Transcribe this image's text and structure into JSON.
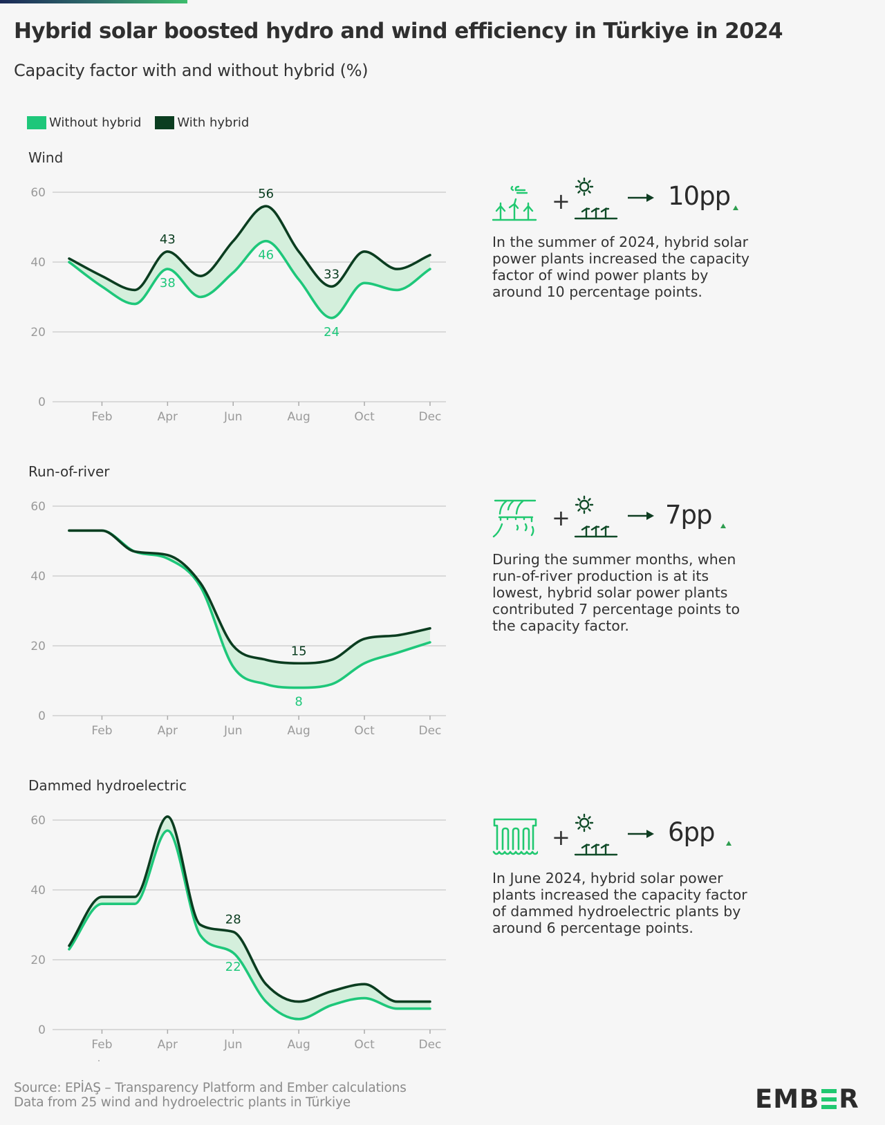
{
  "header": {
    "title": "Hybrid solar boosted hydro and wind efficiency in Türkiye in 2024",
    "subtitle": "Capacity factor with and without hybrid (%)"
  },
  "legend": [
    {
      "label": "Without hybrid",
      "color": "#1ec77a"
    },
    {
      "label": "With hybrid",
      "color": "#0b3d20"
    }
  ],
  "colors": {
    "without": "#1ec77a",
    "with": "#0b3d20",
    "band": "#d4efdc",
    "grid": "#cfcfcf",
    "axis_text": "#9a9a9a",
    "accent_triangle": "#2e9d4f"
  },
  "chart_data": [
    {
      "type": "line",
      "title": "Wind",
      "xlabel": "",
      "ylabel": "",
      "ylim": [
        0,
        60
      ],
      "yticks": [
        "0",
        "20",
        "40",
        "60"
      ],
      "grid": true,
      "x": [
        "Jan",
        "Feb",
        "Mar",
        "Apr",
        "May",
        "Jun",
        "Jul",
        "Aug",
        "Sep",
        "Oct",
        "Nov",
        "Dec"
      ],
      "xtick_labels": [
        "Feb",
        "Apr",
        "Jun",
        "Aug",
        "Oct",
        "Dec"
      ],
      "series": [
        {
          "name": "Without hybrid",
          "values": [
            40,
            33,
            28,
            38,
            30,
            37,
            46,
            35,
            24,
            34,
            32,
            38
          ]
        },
        {
          "name": "With hybrid",
          "values": [
            41,
            36,
            32,
            43,
            36,
            46,
            56,
            43,
            33,
            43,
            38,
            42
          ]
        }
      ],
      "annotations": [
        {
          "series": "With hybrid",
          "month": "Apr",
          "text": "43",
          "pos": "above"
        },
        {
          "series": "Without hybrid",
          "month": "Apr",
          "text": "38",
          "pos": "below"
        },
        {
          "series": "With hybrid",
          "month": "Jul",
          "text": "56",
          "pos": "above"
        },
        {
          "series": "Without hybrid",
          "month": "Jul",
          "text": "46",
          "pos": "below"
        },
        {
          "series": "With hybrid",
          "month": "Sep",
          "text": "33",
          "pos": "above"
        },
        {
          "series": "Without hybrid",
          "month": "Sep",
          "text": "24",
          "pos": "below"
        }
      ]
    },
    {
      "type": "line",
      "title": "Run-of-river",
      "xlabel": "",
      "ylabel": "",
      "ylim": [
        0,
        60
      ],
      "yticks": [
        "0",
        "20",
        "40",
        "60"
      ],
      "grid": true,
      "x": [
        "Jan",
        "Feb",
        "Mar",
        "Apr",
        "May",
        "Jun",
        "Jul",
        "Aug",
        "Sep",
        "Oct",
        "Nov",
        "Dec"
      ],
      "xtick_labels": [
        "Feb",
        "Apr",
        "Jun",
        "Aug",
        "Oct",
        "Dec"
      ],
      "series": [
        {
          "name": "Without hybrid",
          "values": [
            53,
            53,
            47,
            45,
            37,
            14,
            9,
            8,
            9,
            15,
            18,
            21
          ]
        },
        {
          "name": "With hybrid",
          "values": [
            53,
            53,
            47,
            46,
            38,
            20,
            16,
            15,
            16,
            22,
            23,
            25
          ]
        }
      ],
      "annotations": [
        {
          "series": "With hybrid",
          "month": "Aug",
          "text": "15",
          "pos": "above"
        },
        {
          "series": "Without hybrid",
          "month": "Aug",
          "text": "8",
          "pos": "below"
        }
      ]
    },
    {
      "type": "line",
      "title": "Dammed hydroelectric",
      "xlabel": "",
      "ylabel": "",
      "ylim": [
        0,
        60
      ],
      "yticks": [
        "0",
        "20",
        "40",
        "60"
      ],
      "grid": true,
      "x": [
        "Jan",
        "Feb",
        "Mar",
        "Apr",
        "May",
        "Jun",
        "Jul",
        "Aug",
        "Sep",
        "Oct",
        "Nov",
        "Dec"
      ],
      "xtick_labels": [
        "Feb",
        "Apr",
        "Jun",
        "Aug",
        "Oct",
        "Dec"
      ],
      "series": [
        {
          "name": "Without hybrid",
          "values": [
            23,
            36,
            36,
            57,
            27,
            22,
            8,
            3,
            7,
            9,
            6,
            6
          ]
        },
        {
          "name": "With hybrid",
          "values": [
            24,
            38,
            38,
            61,
            30,
            28,
            13,
            8,
            11,
            13,
            8,
            8
          ]
        }
      ],
      "annotations": [
        {
          "series": "With hybrid",
          "month": "Jun",
          "text": "28",
          "pos": "above"
        },
        {
          "series": "Without hybrid",
          "month": "Jun",
          "text": "22",
          "pos": "below"
        }
      ]
    }
  ],
  "annotations_panel": [
    {
      "source_icon": "wind-turbines-icon",
      "plus": "+",
      "solar_icon": "solar-panels-icon",
      "arrow_icon": "arrow-right-icon",
      "gain": "10pp",
      "trend_icon": "up-triangle-icon",
      "text": "In the summer of 2024, hybrid solar power plants increased the capacity factor of wind power plants by around 10 percentage points."
    },
    {
      "source_icon": "run-of-river-icon",
      "plus": "+",
      "solar_icon": "solar-panels-icon",
      "arrow_icon": "arrow-right-icon",
      "gain": "7pp",
      "trend_icon": "up-triangle-icon",
      "text": "During the summer months, when run-of-river production is at its lowest, hybrid solar power plants contributed 7 percentage points to the capacity factor."
    },
    {
      "source_icon": "dam-icon",
      "plus": "+",
      "solar_icon": "solar-panels-icon",
      "arrow_icon": "arrow-right-icon",
      "gain": "6pp",
      "trend_icon": "up-triangle-icon",
      "text": "In June 2024, hybrid solar power plants increased the capacity factor of dammed hydroelectric plants by around 6 percentage points."
    }
  ],
  "footer": {
    "source": "Source: EPİAŞ – Transparency Platform and Ember calculations",
    "note": "Data from 25 wind and hydroelectric plants in Türkiye"
  },
  "logo": {
    "text_left": "EMB",
    "text_right": "R",
    "full": "EMBER"
  }
}
